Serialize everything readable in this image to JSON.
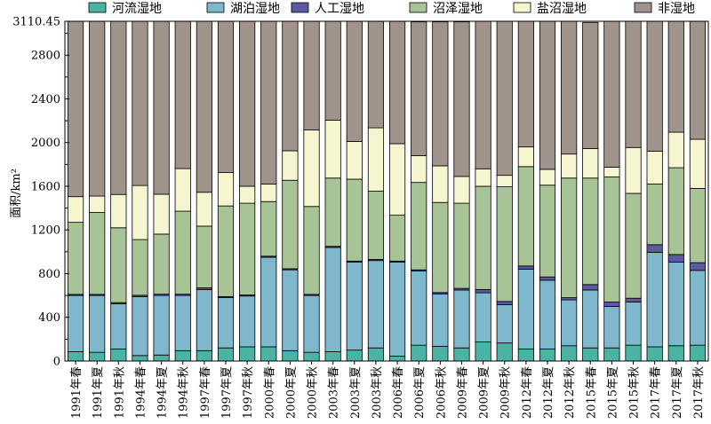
{
  "chart_data": {
    "type": "bar",
    "stacked": true,
    "title": "",
    "xlabel": "",
    "ylabel": "面积/km²",
    "ylim": [
      0,
      3110.45
    ],
    "y_ticks": [
      "0",
      "400",
      "800",
      "1200",
      "1600",
      "2000",
      "2400",
      "2800",
      "3110.45"
    ],
    "y_tick_values": [
      0,
      400,
      800,
      1200,
      1600,
      2000,
      2400,
      2800,
      3110.45
    ],
    "grid": false,
    "legend_position": "top",
    "categories": [
      "1991年春",
      "1991年夏",
      "1991年秋",
      "1994年春",
      "1994年夏",
      "1994年秋",
      "1997年春",
      "1997年夏",
      "1997年秋",
      "2000年春",
      "2000年夏",
      "2000年秋",
      "2003年春",
      "2003年夏",
      "2003年秋",
      "2006年春",
      "2006年夏",
      "2006年秋",
      "2009年春",
      "2009年夏",
      "2009年秋",
      "2012年春",
      "2012年夏",
      "2012年秋",
      "2015年春",
      "2015年夏",
      "2015年秋",
      "2017年春",
      "2017年夏",
      "2017年秋"
    ],
    "series": [
      {
        "name": "河流湿地",
        "color": "#4bb3a3",
        "values": [
          85,
          80,
          110,
          50,
          55,
          95,
          95,
          120,
          130,
          130,
          95,
          80,
          85,
          100,
          120,
          45,
          145,
          135,
          120,
          175,
          165,
          110,
          110,
          140,
          120,
          120,
          145,
          130,
          140,
          145
        ]
      },
      {
        "name": "湖泊湿地",
        "color": "#7fb7cc",
        "values": [
          515,
          520,
          415,
          540,
          545,
          505,
          560,
          460,
          465,
          820,
          740,
          520,
          955,
          805,
          800,
          860,
          680,
          480,
          530,
          450,
          350,
          730,
          630,
          420,
          530,
          380,
          395,
          865,
          765,
          685
        ]
      },
      {
        "name": "人工湿地",
        "color": "#5a5aa0",
        "values": [
          10,
          10,
          10,
          12,
          12,
          12,
          15,
          10,
          10,
          10,
          10,
          10,
          10,
          10,
          10,
          10,
          10,
          12,
          15,
          30,
          30,
          30,
          30,
          20,
          50,
          40,
          35,
          70,
          70,
          70
        ]
      },
      {
        "name": "沼泽湿地",
        "color": "#a8c396",
        "values": [
          660,
          750,
          685,
          510,
          550,
          760,
          565,
          830,
          840,
          500,
          810,
          805,
          625,
          750,
          625,
          420,
          800,
          825,
          780,
          945,
          1050,
          910,
          840,
          1095,
          975,
          1145,
          960,
          555,
          795,
          680
        ]
      },
      {
        "name": "盐沼湿地",
        "color": "#f5f5cf",
        "values": [
          235,
          150,
          305,
          495,
          365,
          390,
          310,
          305,
          155,
          160,
          270,
          700,
          530,
          345,
          580,
          655,
          245,
          335,
          245,
          160,
          105,
          180,
          145,
          220,
          270,
          90,
          420,
          300,
          325,
          450
        ]
      },
      {
        "name": "非湿地",
        "color": "#a0938b",
        "values": [
          1605,
          1600,
          1585,
          1503,
          1583,
          1348,
          1565,
          1385,
          1510,
          1490,
          1185,
          995,
          905,
          1105,
          975,
          1120,
          1225,
          1318,
          1415,
          1350,
          1410,
          1150,
          1355,
          1215,
          1155,
          1335,
          1155,
          1190,
          1015,
          1080
        ]
      }
    ]
  }
}
